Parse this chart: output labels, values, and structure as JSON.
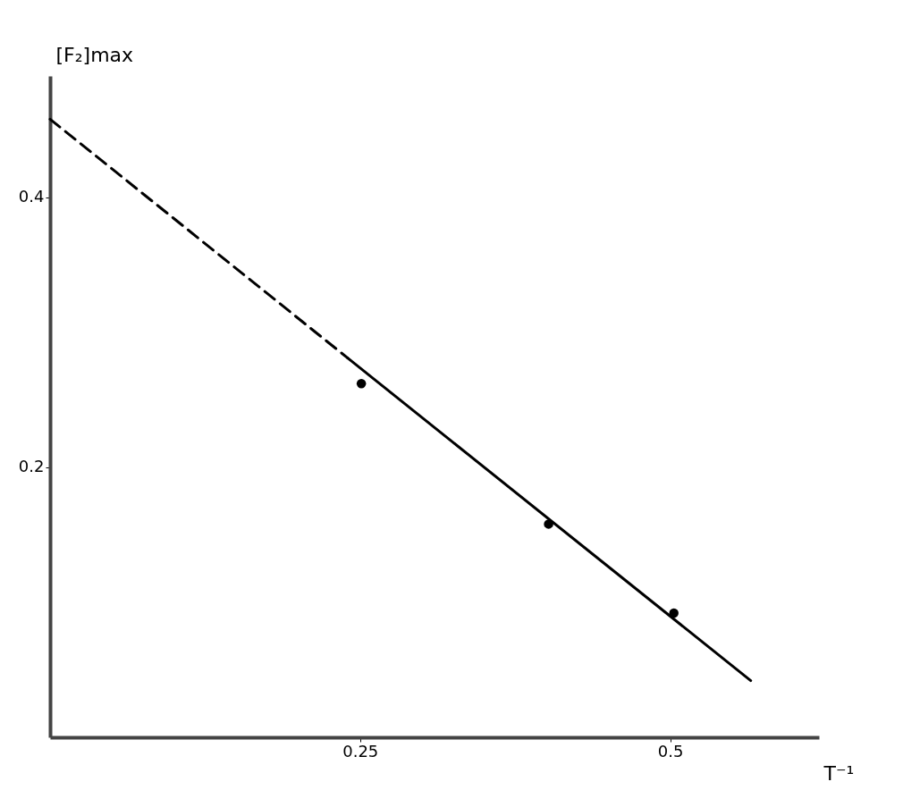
{
  "chart_data": {
    "type": "scatter",
    "xlabel": "T⁻¹",
    "ylabel": "[F₂]max",
    "xlim": [
      0,
      0.62
    ],
    "ylim": [
      0,
      0.49
    ],
    "xticks": [
      0.25,
      0.5
    ],
    "yticks": [
      0.2,
      0.4
    ],
    "grid": false,
    "marker": "circle",
    "series": [
      {
        "type": "line",
        "line_style": "dashed",
        "marker": "none",
        "color": "#000000",
        "x": [
          0,
          0.24
        ],
        "values": [
          0.458,
          0.281
        ]
      },
      {
        "type": "line",
        "line_style": "solid",
        "marker": "none",
        "color": "#000000",
        "x": [
          0.24,
          0.565
        ],
        "values": [
          0.281,
          0.042
        ]
      },
      {
        "color": "#000000",
        "x": [
          0.251,
          0.402,
          0.503
        ],
        "values": [
          0.262,
          0.158,
          0.092
        ]
      }
    ]
  }
}
